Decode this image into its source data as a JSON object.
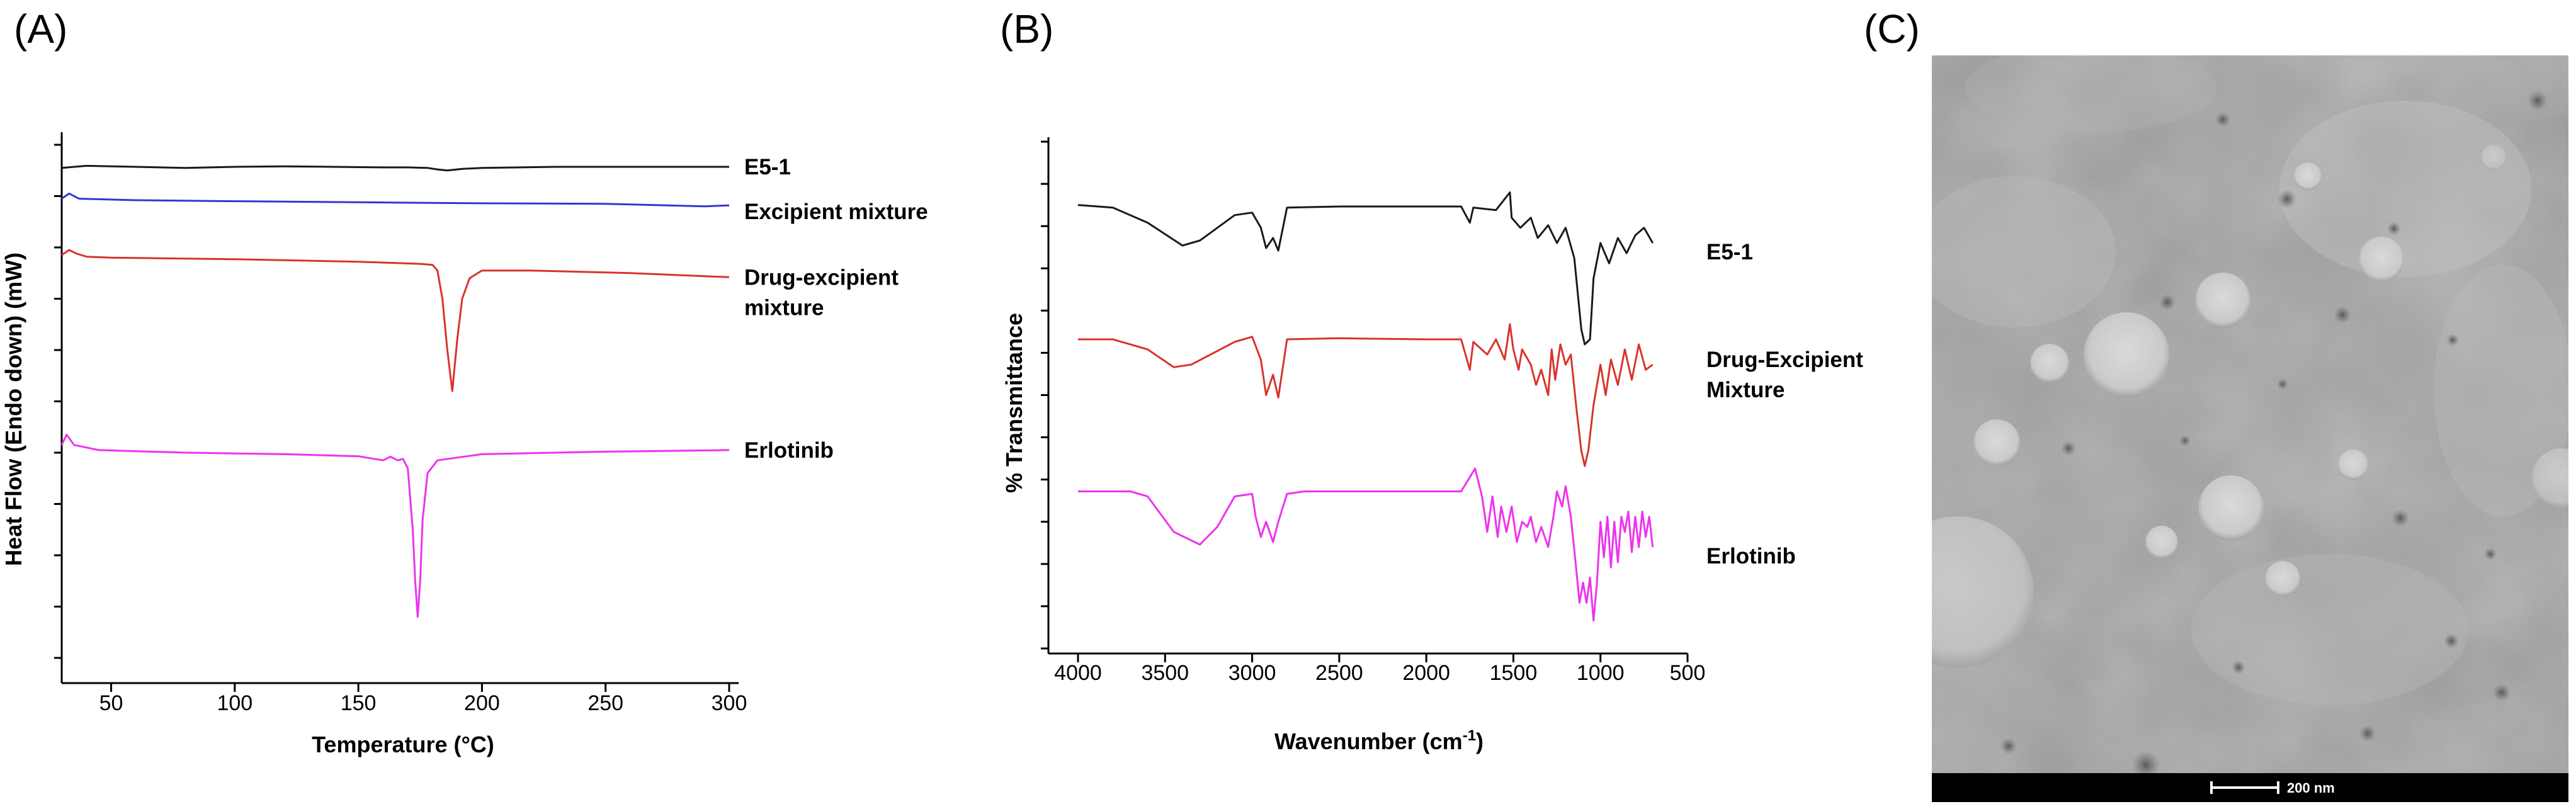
{
  "panels": {
    "a": {
      "letter": "(A)"
    },
    "b": {
      "letter": "(B)"
    },
    "c": {
      "letter": "(C)",
      "scale_bar_label": "200 nm"
    }
  },
  "colors": {
    "black": "#1a1a1a",
    "blue": "#3535d6",
    "red": "#d8342c",
    "magenta": "#ee33ee"
  },
  "chart_data": [
    {
      "id": "dsc",
      "type": "line",
      "title": "",
      "xlabel": "Temperature (°C)",
      "ylabel": "Heat Flow (Endo down) (mW)",
      "xlim": [
        30,
        300
      ],
      "ylim": [
        0,
        10
      ],
      "x_ticks": [
        50,
        100,
        150,
        200,
        250,
        300
      ],
      "y_tick_count": 10,
      "y_tick_labels": false,
      "series": [
        {
          "name": "E5-1",
          "color": "#1a1a1a",
          "points": [
            [
              30,
              9.55
            ],
            [
              40,
              9.59
            ],
            [
              60,
              9.57
            ],
            [
              80,
              9.55
            ],
            [
              100,
              9.57
            ],
            [
              120,
              9.58
            ],
            [
              140,
              9.57
            ],
            [
              160,
              9.56
            ],
            [
              170,
              9.56
            ],
            [
              178,
              9.55
            ],
            [
              182,
              9.52
            ],
            [
              186,
              9.5
            ],
            [
              192,
              9.53
            ],
            [
              200,
              9.55
            ],
            [
              230,
              9.57
            ],
            [
              260,
              9.57
            ],
            [
              300,
              9.57
            ]
          ]
        },
        {
          "name": "Excipient mixture",
          "color": "#3535d6",
          "points": [
            [
              30,
              8.95
            ],
            [
              33,
              9.05
            ],
            [
              37,
              8.95
            ],
            [
              60,
              8.92
            ],
            [
              100,
              8.9
            ],
            [
              150,
              8.88
            ],
            [
              200,
              8.86
            ],
            [
              250,
              8.85
            ],
            [
              290,
              8.8
            ],
            [
              300,
              8.82
            ]
          ]
        },
        {
          "name": "Drug-excipient\nmixture",
          "color": "#d8342c",
          "points": [
            [
              30,
              7.85
            ],
            [
              33,
              7.95
            ],
            [
              36,
              7.88
            ],
            [
              40,
              7.82
            ],
            [
              50,
              7.8
            ],
            [
              100,
              7.77
            ],
            [
              150,
              7.72
            ],
            [
              175,
              7.68
            ],
            [
              180,
              7.66
            ],
            [
              182,
              7.55
            ],
            [
              184,
              7.0
            ],
            [
              186,
              6.0
            ],
            [
              188,
              5.2
            ],
            [
              190,
              6.2
            ],
            [
              192,
              7.0
            ],
            [
              195,
              7.4
            ],
            [
              200,
              7.55
            ],
            [
              220,
              7.55
            ],
            [
              260,
              7.5
            ],
            [
              300,
              7.42
            ]
          ]
        },
        {
          "name": "Erlotinib",
          "color": "#ee33ee",
          "points": [
            [
              30,
              4.15
            ],
            [
              32,
              4.35
            ],
            [
              35,
              4.15
            ],
            [
              45,
              4.05
            ],
            [
              80,
              4.0
            ],
            [
              120,
              3.97
            ],
            [
              150,
              3.93
            ],
            [
              160,
              3.85
            ],
            [
              163,
              3.92
            ],
            [
              166,
              3.85
            ],
            [
              168,
              3.88
            ],
            [
              170,
              3.7
            ],
            [
              172,
              2.5
            ],
            [
              173,
              1.5
            ],
            [
              174,
              0.8
            ],
            [
              175,
              1.5
            ],
            [
              176,
              2.7
            ],
            [
              178,
              3.6
            ],
            [
              182,
              3.85
            ],
            [
              200,
              3.97
            ],
            [
              250,
              4.02
            ],
            [
              300,
              4.05
            ]
          ]
        }
      ],
      "legend": "inline-right"
    },
    {
      "id": "ftir",
      "type": "line",
      "title": "",
      "xlabel": "Wavenumber (cm⁻¹)",
      "xlabel_main": "Wavenumber (cm",
      "xlabel_sup": "-1",
      "xlabel_close": ")",
      "ylabel": "% Transmittance",
      "xlim": [
        4100,
        500
      ],
      "x_reversed": true,
      "ylim": [
        0,
        10
      ],
      "x_ticks": [
        4000,
        3500,
        3000,
        2500,
        2000,
        1500,
        1000,
        500
      ],
      "y_tick_count": 12,
      "y_tick_labels": false,
      "series": [
        {
          "name": "E5-1",
          "color": "#1a1a1a",
          "points": [
            [
              4000,
              8.75
            ],
            [
              3800,
              8.7
            ],
            [
              3600,
              8.4
            ],
            [
              3400,
              7.95
            ],
            [
              3300,
              8.05
            ],
            [
              3100,
              8.55
            ],
            [
              3000,
              8.6
            ],
            [
              2950,
              8.3
            ],
            [
              2920,
              7.9
            ],
            [
              2880,
              8.1
            ],
            [
              2850,
              7.85
            ],
            [
              2800,
              8.7
            ],
            [
              2500,
              8.72
            ],
            [
              2000,
              8.72
            ],
            [
              1800,
              8.72
            ],
            [
              1750,
              8.4
            ],
            [
              1730,
              8.7
            ],
            [
              1600,
              8.65
            ],
            [
              1520,
              9.0
            ],
            [
              1510,
              8.5
            ],
            [
              1460,
              8.3
            ],
            [
              1400,
              8.5
            ],
            [
              1360,
              8.1
            ],
            [
              1300,
              8.35
            ],
            [
              1250,
              8.0
            ],
            [
              1200,
              8.3
            ],
            [
              1150,
              7.7
            ],
            [
              1110,
              6.3
            ],
            [
              1090,
              6.0
            ],
            [
              1060,
              6.1
            ],
            [
              1040,
              7.3
            ],
            [
              1000,
              8.0
            ],
            [
              950,
              7.6
            ],
            [
              900,
              8.1
            ],
            [
              850,
              7.8
            ],
            [
              800,
              8.15
            ],
            [
              750,
              8.3
            ],
            [
              700,
              8.0
            ]
          ]
        },
        {
          "name": "Drug-Excipient\nMixture",
          "color": "#d8342c",
          "points": [
            [
              4000,
              6.1
            ],
            [
              3800,
              6.1
            ],
            [
              3600,
              5.9
            ],
            [
              3450,
              5.55
            ],
            [
              3350,
              5.6
            ],
            [
              3100,
              6.05
            ],
            [
              3000,
              6.15
            ],
            [
              2950,
              5.7
            ],
            [
              2920,
              5.0
            ],
            [
              2880,
              5.4
            ],
            [
              2850,
              4.95
            ],
            [
              2800,
              6.1
            ],
            [
              2500,
              6.12
            ],
            [
              2000,
              6.1
            ],
            [
              1800,
              6.1
            ],
            [
              1750,
              5.5
            ],
            [
              1730,
              6.05
            ],
            [
              1650,
              5.8
            ],
            [
              1600,
              6.1
            ],
            [
              1550,
              5.7
            ],
            [
              1520,
              6.4
            ],
            [
              1500,
              5.9
            ],
            [
              1470,
              5.5
            ],
            [
              1450,
              5.9
            ],
            [
              1400,
              5.6
            ],
            [
              1370,
              5.2
            ],
            [
              1340,
              5.5
            ],
            [
              1300,
              5.0
            ],
            [
              1280,
              5.9
            ],
            [
              1260,
              5.3
            ],
            [
              1230,
              6.0
            ],
            [
              1200,
              5.6
            ],
            [
              1170,
              5.8
            ],
            [
              1140,
              4.8
            ],
            [
              1110,
              3.9
            ],
            [
              1090,
              3.6
            ],
            [
              1070,
              3.9
            ],
            [
              1040,
              4.8
            ],
            [
              1000,
              5.6
            ],
            [
              970,
              5.0
            ],
            [
              940,
              5.7
            ],
            [
              900,
              5.2
            ],
            [
              860,
              5.9
            ],
            [
              820,
              5.3
            ],
            [
              780,
              6.0
            ],
            [
              740,
              5.5
            ],
            [
              700,
              5.6
            ]
          ]
        },
        {
          "name": "Erlotinib",
          "color": "#ee33ee",
          "points": [
            [
              4000,
              3.1
            ],
            [
              3700,
              3.1
            ],
            [
              3600,
              3.0
            ],
            [
              3450,
              2.3
            ],
            [
              3300,
              2.05
            ],
            [
              3200,
              2.4
            ],
            [
              3100,
              3.0
            ],
            [
              3000,
              3.05
            ],
            [
              2980,
              2.6
            ],
            [
              2950,
              2.2
            ],
            [
              2920,
              2.5
            ],
            [
              2880,
              2.1
            ],
            [
              2850,
              2.5
            ],
            [
              2800,
              3.05
            ],
            [
              2700,
              3.1
            ],
            [
              2500,
              3.1
            ],
            [
              2000,
              3.1
            ],
            [
              1800,
              3.1
            ],
            [
              1720,
              3.55
            ],
            [
              1680,
              3.0
            ],
            [
              1650,
              2.3
            ],
            [
              1620,
              3.0
            ],
            [
              1590,
              2.2
            ],
            [
              1570,
              2.8
            ],
            [
              1540,
              2.3
            ],
            [
              1510,
              2.8
            ],
            [
              1480,
              2.1
            ],
            [
              1450,
              2.5
            ],
            [
              1420,
              2.4
            ],
            [
              1400,
              2.6
            ],
            [
              1370,
              2.1
            ],
            [
              1340,
              2.4
            ],
            [
              1300,
              2.0
            ],
            [
              1270,
              2.6
            ],
            [
              1250,
              3.1
            ],
            [
              1220,
              2.8
            ],
            [
              1200,
              3.2
            ],
            [
              1170,
              2.6
            ],
            [
              1140,
              1.6
            ],
            [
              1120,
              0.9
            ],
            [
              1100,
              1.3
            ],
            [
              1080,
              0.9
            ],
            [
              1060,
              1.4
            ],
            [
              1040,
              0.55
            ],
            [
              1020,
              1.3
            ],
            [
              1000,
              2.5
            ],
            [
              980,
              1.8
            ],
            [
              960,
              2.6
            ],
            [
              940,
              1.6
            ],
            [
              920,
              2.5
            ],
            [
              900,
              1.7
            ],
            [
              880,
              2.6
            ],
            [
              860,
              2.3
            ],
            [
              840,
              2.7
            ],
            [
              820,
              1.9
            ],
            [
              800,
              2.6
            ],
            [
              780,
              2.0
            ],
            [
              760,
              2.7
            ],
            [
              740,
              2.2
            ],
            [
              720,
              2.6
            ],
            [
              700,
              2.0
            ]
          ]
        }
      ],
      "legend": "inline-right"
    }
  ]
}
